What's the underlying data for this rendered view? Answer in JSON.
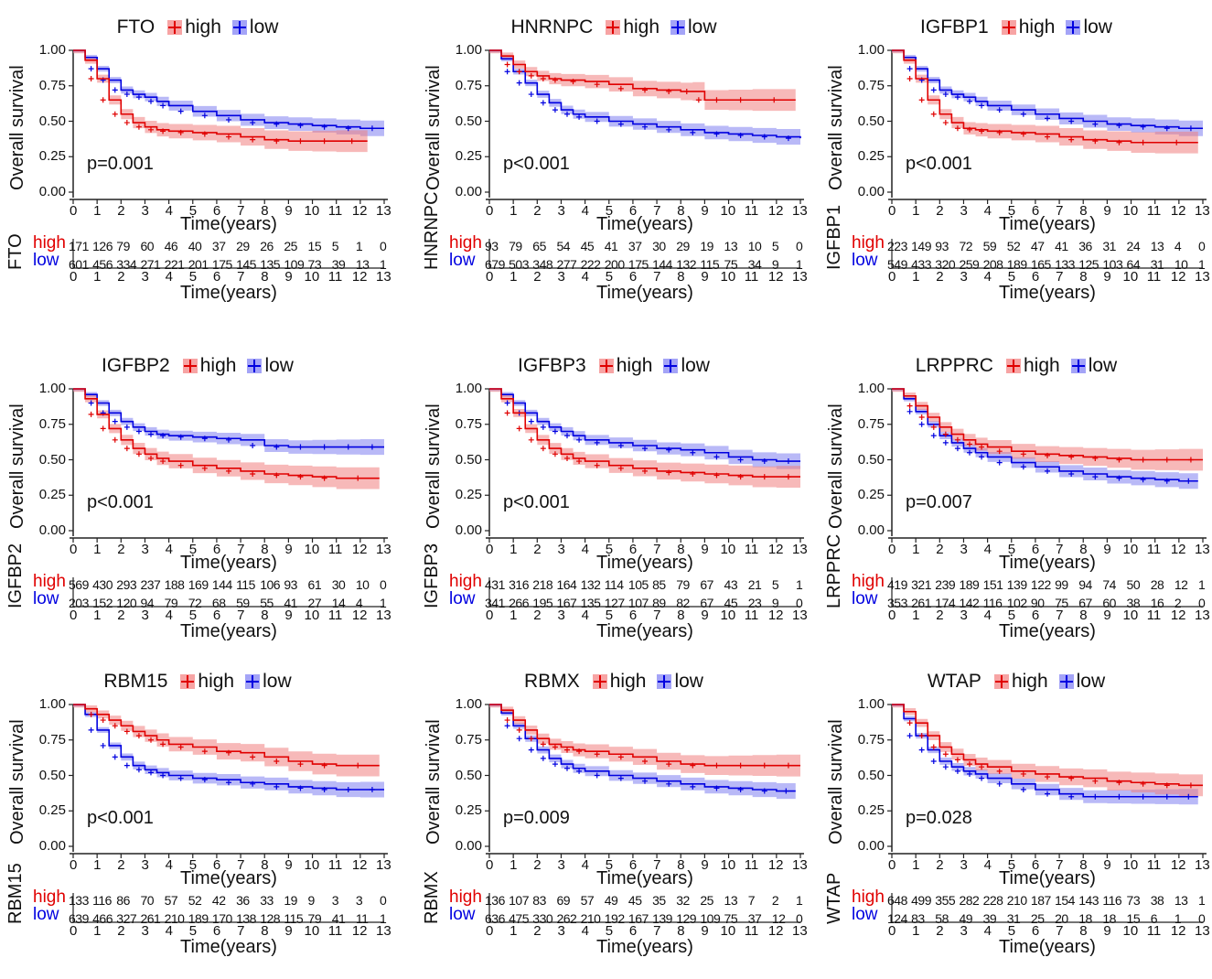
{
  "colors": {
    "high": "#e00000",
    "low": "#0000e0",
    "high_band": "#f08080",
    "low_band": "#8080f0"
  },
  "legend_labels": {
    "high": "high",
    "low": "low"
  },
  "axis": {
    "ylabel": "Overall survival",
    "xlabel": "Time(years)",
    "risk_xlabel": "Time(years)",
    "yticks": [
      "0.00",
      "0.25",
      "0.50",
      "0.75",
      "1.00"
    ],
    "xticks": [
      "0",
      "1",
      "2",
      "3",
      "4",
      "5",
      "6",
      "7",
      "8",
      "9",
      "10",
      "11",
      "12",
      "13"
    ]
  },
  "chart_data": [
    {
      "type": "line",
      "title": "FTO",
      "pvalue": "p=0.001",
      "xlim": [
        0,
        13
      ],
      "ylim": [
        0,
        1
      ],
      "series": [
        {
          "name": "high",
          "x": [
            0,
            0.5,
            1,
            1.5,
            2,
            2.5,
            3,
            3.5,
            4,
            5,
            6,
            7,
            8,
            9,
            10,
            11,
            12.3
          ],
          "y": [
            1,
            0.93,
            0.8,
            0.65,
            0.55,
            0.49,
            0.46,
            0.44,
            0.43,
            0.42,
            0.41,
            0.39,
            0.37,
            0.36,
            0.36,
            0.36,
            0.36
          ]
        },
        {
          "name": "low",
          "x": [
            0,
            0.5,
            1,
            1.5,
            2,
            2.5,
            3,
            3.5,
            4,
            5,
            6,
            7,
            8,
            9,
            10,
            11,
            12,
            13
          ],
          "y": [
            1,
            0.95,
            0.87,
            0.79,
            0.72,
            0.69,
            0.67,
            0.64,
            0.61,
            0.57,
            0.54,
            0.51,
            0.49,
            0.48,
            0.47,
            0.46,
            0.45,
            0.45
          ]
        }
      ],
      "risk_table": {
        "high": [
          "171",
          "126",
          "79",
          "60",
          "46",
          "40",
          "37",
          "29",
          "26",
          "25",
          "15",
          "5",
          "1",
          "0"
        ],
        "low": [
          "601",
          "456",
          "334",
          "271",
          "221",
          "201",
          "175",
          "145",
          "135",
          "109",
          "73",
          "39",
          "13",
          "1"
        ]
      }
    },
    {
      "type": "line",
      "title": "HNRNPC",
      "pvalue": "p<0.001",
      "xlim": [
        0,
        13
      ],
      "ylim": [
        0,
        1
      ],
      "series": [
        {
          "name": "high",
          "x": [
            0,
            0.5,
            1,
            1.5,
            2,
            2.5,
            3,
            4,
            5,
            6,
            7,
            8,
            8.5,
            9,
            10,
            11,
            12.8
          ],
          "y": [
            1,
            0.96,
            0.9,
            0.85,
            0.82,
            0.8,
            0.79,
            0.78,
            0.76,
            0.73,
            0.72,
            0.71,
            0.71,
            0.65,
            0.65,
            0.65,
            0.65
          ]
        },
        {
          "name": "low",
          "x": [
            0,
            0.5,
            1,
            1.5,
            2,
            2.5,
            3,
            3.5,
            4,
            5,
            6,
            7,
            8,
            9,
            10,
            11,
            12,
            13
          ],
          "y": [
            1,
            0.94,
            0.85,
            0.77,
            0.69,
            0.63,
            0.58,
            0.55,
            0.53,
            0.5,
            0.48,
            0.46,
            0.44,
            0.42,
            0.41,
            0.4,
            0.39,
            0.38
          ]
        }
      ],
      "risk_table": {
        "high": [
          "93",
          "79",
          "65",
          "54",
          "45",
          "41",
          "37",
          "30",
          "29",
          "19",
          "13",
          "10",
          "5",
          "0"
        ],
        "low": [
          "679",
          "503",
          "348",
          "277",
          "222",
          "200",
          "175",
          "144",
          "132",
          "115",
          "75",
          "34",
          "9",
          "1"
        ]
      }
    },
    {
      "type": "line",
      "title": "IGFBP1",
      "pvalue": "p<0.001",
      "xlim": [
        0,
        13
      ],
      "ylim": [
        0,
        1
      ],
      "series": [
        {
          "name": "high",
          "x": [
            0,
            0.5,
            1,
            1.5,
            2,
            2.5,
            3,
            3.5,
            4,
            5,
            6,
            7,
            8,
            9,
            10,
            11,
            12.8
          ],
          "y": [
            1,
            0.93,
            0.8,
            0.65,
            0.55,
            0.49,
            0.45,
            0.44,
            0.43,
            0.42,
            0.41,
            0.39,
            0.37,
            0.36,
            0.35,
            0.35,
            0.35
          ]
        },
        {
          "name": "low",
          "x": [
            0,
            0.5,
            1,
            1.5,
            2,
            2.5,
            3,
            3.5,
            4,
            5,
            6,
            7,
            8,
            9,
            10,
            11,
            12,
            13
          ],
          "y": [
            1,
            0.95,
            0.87,
            0.79,
            0.72,
            0.69,
            0.67,
            0.64,
            0.61,
            0.58,
            0.55,
            0.52,
            0.5,
            0.48,
            0.47,
            0.46,
            0.45,
            0.45
          ]
        }
      ],
      "risk_table": {
        "high": [
          "223",
          "149",
          "93",
          "72",
          "59",
          "52",
          "47",
          "41",
          "36",
          "31",
          "24",
          "13",
          "4",
          "0"
        ],
        "low": [
          "549",
          "433",
          "320",
          "259",
          "208",
          "189",
          "165",
          "133",
          "125",
          "103",
          "64",
          "31",
          "10",
          "1"
        ]
      }
    },
    {
      "type": "line",
      "title": "IGFBP2",
      "pvalue": "p<0.001",
      "xlim": [
        0,
        13
      ],
      "ylim": [
        0,
        1
      ],
      "series": [
        {
          "name": "high",
          "x": [
            0,
            0.5,
            1,
            1.5,
            2,
            2.5,
            3,
            3.5,
            4,
            5,
            6,
            7,
            8,
            9,
            10,
            11,
            12.8
          ],
          "y": [
            1,
            0.93,
            0.82,
            0.72,
            0.64,
            0.58,
            0.54,
            0.51,
            0.49,
            0.46,
            0.44,
            0.42,
            0.4,
            0.39,
            0.38,
            0.37,
            0.37
          ]
        },
        {
          "name": "low",
          "x": [
            0,
            0.5,
            1,
            1.5,
            2,
            2.5,
            3,
            3.5,
            4,
            5,
            6,
            7,
            8,
            9,
            10,
            11,
            12,
            13
          ],
          "y": [
            1,
            0.96,
            0.9,
            0.83,
            0.77,
            0.73,
            0.7,
            0.68,
            0.67,
            0.66,
            0.65,
            0.64,
            0.6,
            0.59,
            0.59,
            0.59,
            0.59,
            0.59
          ]
        }
      ],
      "risk_table": {
        "high": [
          "569",
          "430",
          "293",
          "237",
          "188",
          "169",
          "144",
          "115",
          "106",
          "93",
          "61",
          "30",
          "10",
          "0"
        ],
        "low": [
          "203",
          "152",
          "120",
          "94",
          "79",
          "72",
          "68",
          "59",
          "55",
          "41",
          "27",
          "14",
          "4",
          "1"
        ]
      }
    },
    {
      "type": "line",
      "title": "IGFBP3",
      "pvalue": "p<0.001",
      "xlim": [
        0,
        13
      ],
      "ylim": [
        0,
        1
      ],
      "series": [
        {
          "name": "high",
          "x": [
            0,
            0.5,
            1,
            1.5,
            2,
            2.5,
            3,
            3.5,
            4,
            5,
            6,
            7,
            8,
            9,
            10,
            11,
            12,
            13
          ],
          "y": [
            1,
            0.93,
            0.83,
            0.72,
            0.64,
            0.58,
            0.54,
            0.51,
            0.49,
            0.46,
            0.44,
            0.42,
            0.41,
            0.4,
            0.39,
            0.38,
            0.38,
            0.38
          ]
        },
        {
          "name": "low",
          "x": [
            0,
            0.5,
            1,
            1.5,
            2,
            2.5,
            3,
            3.5,
            4,
            5,
            6,
            7,
            8,
            9,
            10,
            11,
            12,
            13
          ],
          "y": [
            1,
            0.96,
            0.9,
            0.83,
            0.77,
            0.73,
            0.7,
            0.67,
            0.64,
            0.62,
            0.6,
            0.58,
            0.57,
            0.55,
            0.52,
            0.5,
            0.49,
            0.49
          ]
        }
      ],
      "risk_table": {
        "high": [
          "431",
          "316",
          "218",
          "164",
          "132",
          "114",
          "105",
          "85",
          "79",
          "67",
          "43",
          "21",
          "5",
          "1"
        ],
        "low": [
          "341",
          "266",
          "195",
          "167",
          "135",
          "127",
          "107",
          "89",
          "82",
          "67",
          "45",
          "23",
          "9",
          "0"
        ]
      }
    },
    {
      "type": "line",
      "title": "LRPPRC",
      "pvalue": "p=0.007",
      "xlim": [
        0,
        13
      ],
      "ylim": [
        0,
        1
      ],
      "series": [
        {
          "name": "high",
          "x": [
            0,
            0.5,
            1,
            1.5,
            2,
            2.5,
            3,
            3.5,
            4,
            5,
            6,
            7,
            8,
            9,
            10,
            11,
            12,
            13
          ],
          "y": [
            1,
            0.95,
            0.88,
            0.8,
            0.73,
            0.68,
            0.64,
            0.61,
            0.59,
            0.56,
            0.54,
            0.53,
            0.52,
            0.51,
            0.5,
            0.5,
            0.5,
            0.5
          ]
        },
        {
          "name": "low",
          "x": [
            0,
            0.5,
            1,
            1.5,
            2,
            2.5,
            3,
            3.5,
            4,
            5,
            6,
            7,
            8,
            9,
            10,
            11,
            12,
            12.8
          ],
          "y": [
            1,
            0.93,
            0.84,
            0.75,
            0.67,
            0.62,
            0.58,
            0.55,
            0.52,
            0.48,
            0.45,
            0.42,
            0.4,
            0.38,
            0.37,
            0.36,
            0.35,
            0.35
          ]
        }
      ],
      "risk_table": {
        "high": [
          "419",
          "321",
          "239",
          "189",
          "151",
          "139",
          "122",
          "99",
          "94",
          "74",
          "50",
          "28",
          "12",
          "1"
        ],
        "low": [
          "353",
          "261",
          "174",
          "142",
          "116",
          "102",
          "90",
          "75",
          "67",
          "60",
          "38",
          "16",
          "2",
          "0"
        ]
      }
    },
    {
      "type": "line",
      "title": "RBM15",
      "pvalue": "p<0.001",
      "xlim": [
        0,
        13
      ],
      "ylim": [
        0,
        1
      ],
      "series": [
        {
          "name": "high",
          "x": [
            0,
            0.5,
            1,
            1.5,
            2,
            2.5,
            3,
            3.5,
            4,
            5,
            6,
            7,
            8,
            9,
            10,
            11,
            12.8
          ],
          "y": [
            1,
            0.97,
            0.93,
            0.89,
            0.85,
            0.81,
            0.78,
            0.75,
            0.72,
            0.7,
            0.67,
            0.66,
            0.63,
            0.6,
            0.58,
            0.57,
            0.57
          ]
        },
        {
          "name": "low",
          "x": [
            0,
            0.5,
            1,
            1.5,
            2,
            2.5,
            3,
            3.5,
            4,
            5,
            6,
            7,
            8,
            9,
            10,
            11,
            12,
            13
          ],
          "y": [
            1,
            0.93,
            0.82,
            0.71,
            0.63,
            0.57,
            0.54,
            0.52,
            0.5,
            0.48,
            0.47,
            0.45,
            0.44,
            0.42,
            0.41,
            0.4,
            0.4,
            0.4
          ]
        }
      ],
      "risk_table": {
        "high": [
          "133",
          "116",
          "86",
          "70",
          "57",
          "52",
          "42",
          "36",
          "33",
          "19",
          "9",
          "3",
          "3",
          "0"
        ],
        "low": [
          "639",
          "466",
          "327",
          "261",
          "210",
          "189",
          "170",
          "138",
          "128",
          "115",
          "79",
          "41",
          "11",
          "1"
        ]
      }
    },
    {
      "type": "line",
      "title": "RBMX",
      "pvalue": "p=0.009",
      "xlim": [
        0,
        13
      ],
      "ylim": [
        0,
        1
      ],
      "series": [
        {
          "name": "high",
          "x": [
            0,
            0.5,
            1,
            1.5,
            2,
            2.5,
            3,
            3.5,
            4,
            5,
            6,
            7,
            8,
            9,
            10,
            11,
            12,
            13
          ],
          "y": [
            1,
            0.96,
            0.89,
            0.82,
            0.76,
            0.72,
            0.7,
            0.68,
            0.67,
            0.65,
            0.63,
            0.6,
            0.58,
            0.57,
            0.57,
            0.57,
            0.57,
            0.57
          ]
        },
        {
          "name": "low",
          "x": [
            0,
            0.5,
            1,
            1.5,
            2,
            2.5,
            3,
            3.5,
            4,
            5,
            6,
            7,
            8,
            9,
            10,
            11,
            12,
            12.8
          ],
          "y": [
            1,
            0.94,
            0.85,
            0.76,
            0.68,
            0.62,
            0.58,
            0.55,
            0.53,
            0.5,
            0.48,
            0.46,
            0.44,
            0.42,
            0.41,
            0.4,
            0.39,
            0.39
          ]
        }
      ],
      "risk_table": {
        "high": [
          "136",
          "107",
          "83",
          "69",
          "57",
          "49",
          "45",
          "35",
          "32",
          "25",
          "13",
          "7",
          "2",
          "1"
        ],
        "low": [
          "636",
          "475",
          "330",
          "262",
          "210",
          "192",
          "167",
          "139",
          "129",
          "109",
          "75",
          "37",
          "12",
          "0"
        ]
      }
    },
    {
      "type": "line",
      "title": "WTAP",
      "pvalue": "p=0.028",
      "xlim": [
        0,
        13
      ],
      "ylim": [
        0,
        1
      ],
      "series": [
        {
          "name": "high",
          "x": [
            0,
            0.5,
            1,
            1.5,
            2,
            2.5,
            3,
            3.5,
            4,
            5,
            6,
            7,
            8,
            9,
            10,
            11,
            12,
            13
          ],
          "y": [
            1,
            0.95,
            0.87,
            0.78,
            0.7,
            0.65,
            0.61,
            0.58,
            0.56,
            0.53,
            0.51,
            0.49,
            0.48,
            0.46,
            0.45,
            0.44,
            0.43,
            0.43
          ]
        },
        {
          "name": "low",
          "x": [
            0,
            0.5,
            1,
            1.5,
            2,
            2.5,
            3,
            3.5,
            4,
            5,
            6,
            7,
            8,
            9,
            10,
            11,
            12,
            12.8
          ],
          "y": [
            1,
            0.9,
            0.78,
            0.68,
            0.6,
            0.56,
            0.53,
            0.51,
            0.48,
            0.44,
            0.4,
            0.37,
            0.35,
            0.35,
            0.35,
            0.35,
            0.35,
            0.35
          ]
        }
      ],
      "risk_table": {
        "high": [
          "648",
          "499",
          "355",
          "282",
          "228",
          "210",
          "187",
          "154",
          "143",
          "116",
          "73",
          "38",
          "13",
          "1"
        ],
        "low": [
          "124",
          "83",
          "58",
          "49",
          "39",
          "31",
          "25",
          "20",
          "18",
          "18",
          "15",
          "6",
          "1",
          "0"
        ]
      }
    }
  ]
}
